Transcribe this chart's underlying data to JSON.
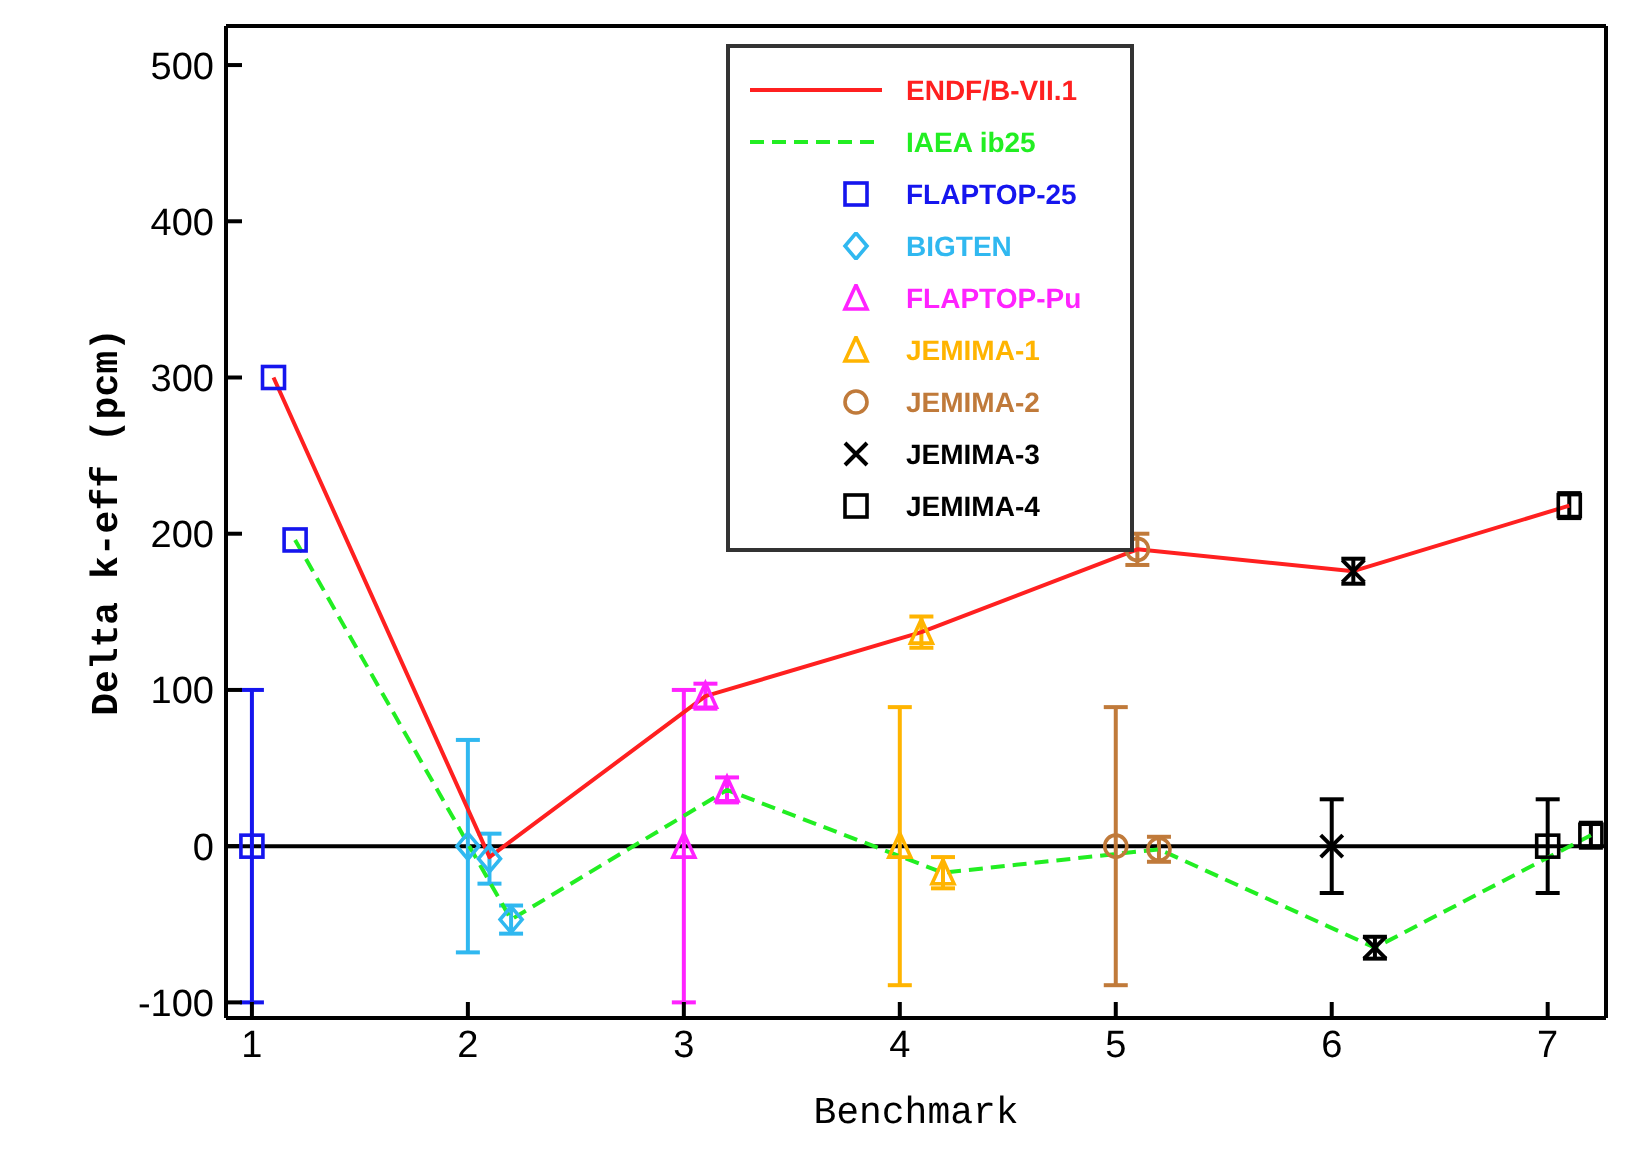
{
  "chart_data": {
    "type": "scatter",
    "xlabel": "Benchmark",
    "ylabel": "Delta k-eff (pcm)",
    "xlim": [
      0.88,
      7.27
    ],
    "ylim": [
      -110,
      525
    ],
    "xticks": [
      1,
      2,
      3,
      4,
      5,
      6,
      7
    ],
    "yticks": [
      -100,
      0,
      100,
      200,
      300,
      400,
      500
    ],
    "grid": false,
    "legend": "top",
    "ref_lines": [
      {
        "axis": "y",
        "value": 0,
        "color": "#000000"
      }
    ],
    "series": [
      {
        "type": "line",
        "name": "ENDF/B-VII.1",
        "color": "#ff2020",
        "line_style": "solid",
        "marker": "none",
        "x": [
          1.1,
          2.1,
          3.1,
          4.1,
          5.1,
          6.1,
          7.1
        ],
        "values": [
          300,
          -7,
          96,
          137,
          190,
          176,
          218
        ]
      },
      {
        "type": "line",
        "name": "IAEA ib25",
        "color": "#22ee22",
        "line_style": "dashed",
        "marker": "none",
        "x": [
          1.2,
          2.2,
          3.2,
          4.2,
          5.2,
          6.2,
          7.2
        ],
        "values": [
          196,
          -47,
          36,
          -17,
          -2,
          -65,
          7
        ]
      },
      {
        "name": "FLAPTOP-25",
        "color": "#1515ee",
        "marker": "square",
        "x": [
          1,
          1.1,
          1.2
        ],
        "values": [
          0,
          300,
          196
        ],
        "errors": [
          100,
          null,
          null
        ]
      },
      {
        "name": "BIGTEN",
        "color": "#30b8f0",
        "marker": "diamond",
        "x": [
          2,
          2.1,
          2.2
        ],
        "values": [
          0,
          -8,
          -47
        ],
        "errors": [
          68,
          16,
          9
        ]
      },
      {
        "name": "FLAPTOP-Pu",
        "color": "#ff22ff",
        "marker": "triangle",
        "x": [
          3,
          3.1,
          3.2
        ],
        "values": [
          0,
          96,
          36
        ],
        "errors": [
          100,
          8,
          8
        ]
      },
      {
        "name": "JEMIMA-1",
        "color": "#ffb400",
        "marker": "triangle",
        "x": [
          4,
          4.1,
          4.2
        ],
        "values": [
          0,
          137,
          -17
        ],
        "errors": [
          89,
          10,
          10
        ]
      },
      {
        "name": "JEMIMA-2",
        "color": "#c07a3a",
        "marker": "circle",
        "x": [
          5,
          5.1,
          5.2
        ],
        "values": [
          0,
          190,
          -2
        ],
        "errors": [
          89,
          10,
          8
        ]
      },
      {
        "name": "JEMIMA-3",
        "color": "#000000",
        "marker": "cross",
        "x": [
          6,
          6.1,
          6.2
        ],
        "values": [
          0,
          176,
          -65
        ],
        "errors": [
          30,
          8,
          7
        ]
      },
      {
        "name": "JEMIMA-4",
        "color": "#000000",
        "marker": "square",
        "x": [
          7,
          7.1,
          7.2
        ],
        "values": [
          0,
          218,
          7
        ],
        "errors": [
          30,
          8,
          8
        ]
      }
    ]
  }
}
